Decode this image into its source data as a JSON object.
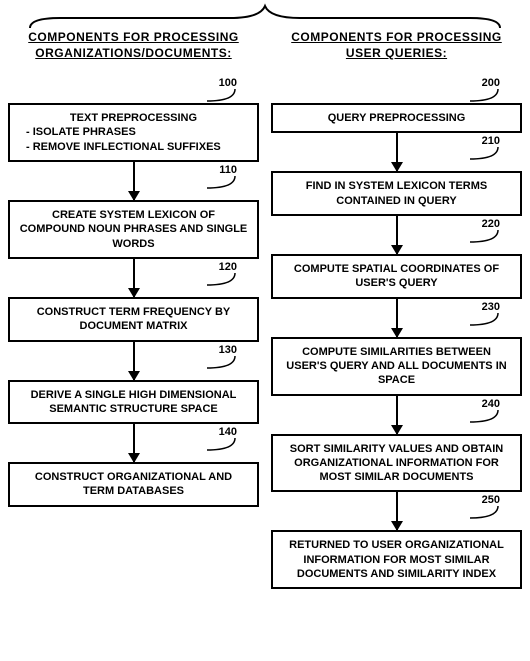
{
  "brace": {
    "stroke": "#000000",
    "stroke_width": 2
  },
  "left": {
    "title": "Components for Processing\nOrganizations/Documents:",
    "boxes": [
      {
        "ref": "100",
        "text": "Text Preprocessing",
        "sub": [
          "- Isolate Phrases",
          "- Remove Inflectional Suffixes"
        ]
      },
      {
        "ref": "110",
        "text": "Create System Lexicon of Compound Noun Phrases and Single Words"
      },
      {
        "ref": "120",
        "text": "Construct Term Frequency by Document Matrix"
      },
      {
        "ref": "130",
        "text": "Derive a Single High Dimensional Semantic Structure Space"
      },
      {
        "ref": "140",
        "text": "Construct Organizational and Term Databases"
      }
    ]
  },
  "right": {
    "title": "Components for Processing\nUser Queries:",
    "boxes": [
      {
        "ref": "200",
        "text": "Query Preprocessing"
      },
      {
        "ref": "210",
        "text": "Find in System Lexicon Terms Contained in Query"
      },
      {
        "ref": "220",
        "text": "Compute Spatial Coordinates of User's Query"
      },
      {
        "ref": "230",
        "text": "Compute Similarities Between User's Query and All Documents in Space"
      },
      {
        "ref": "240",
        "text": "Sort Similarity Values and Obtain Organizational Information for Most Similar Documents"
      },
      {
        "ref": "250",
        "text": "Returned to User Organizational Information for Most Similar Documents and Similarity Index"
      }
    ]
  },
  "style": {
    "box_border": "#000000",
    "box_border_width": 2,
    "background": "#ffffff",
    "font_size_title": 12,
    "font_size_box": 11,
    "font_size_ref": 11,
    "arrow_length": 38
  }
}
